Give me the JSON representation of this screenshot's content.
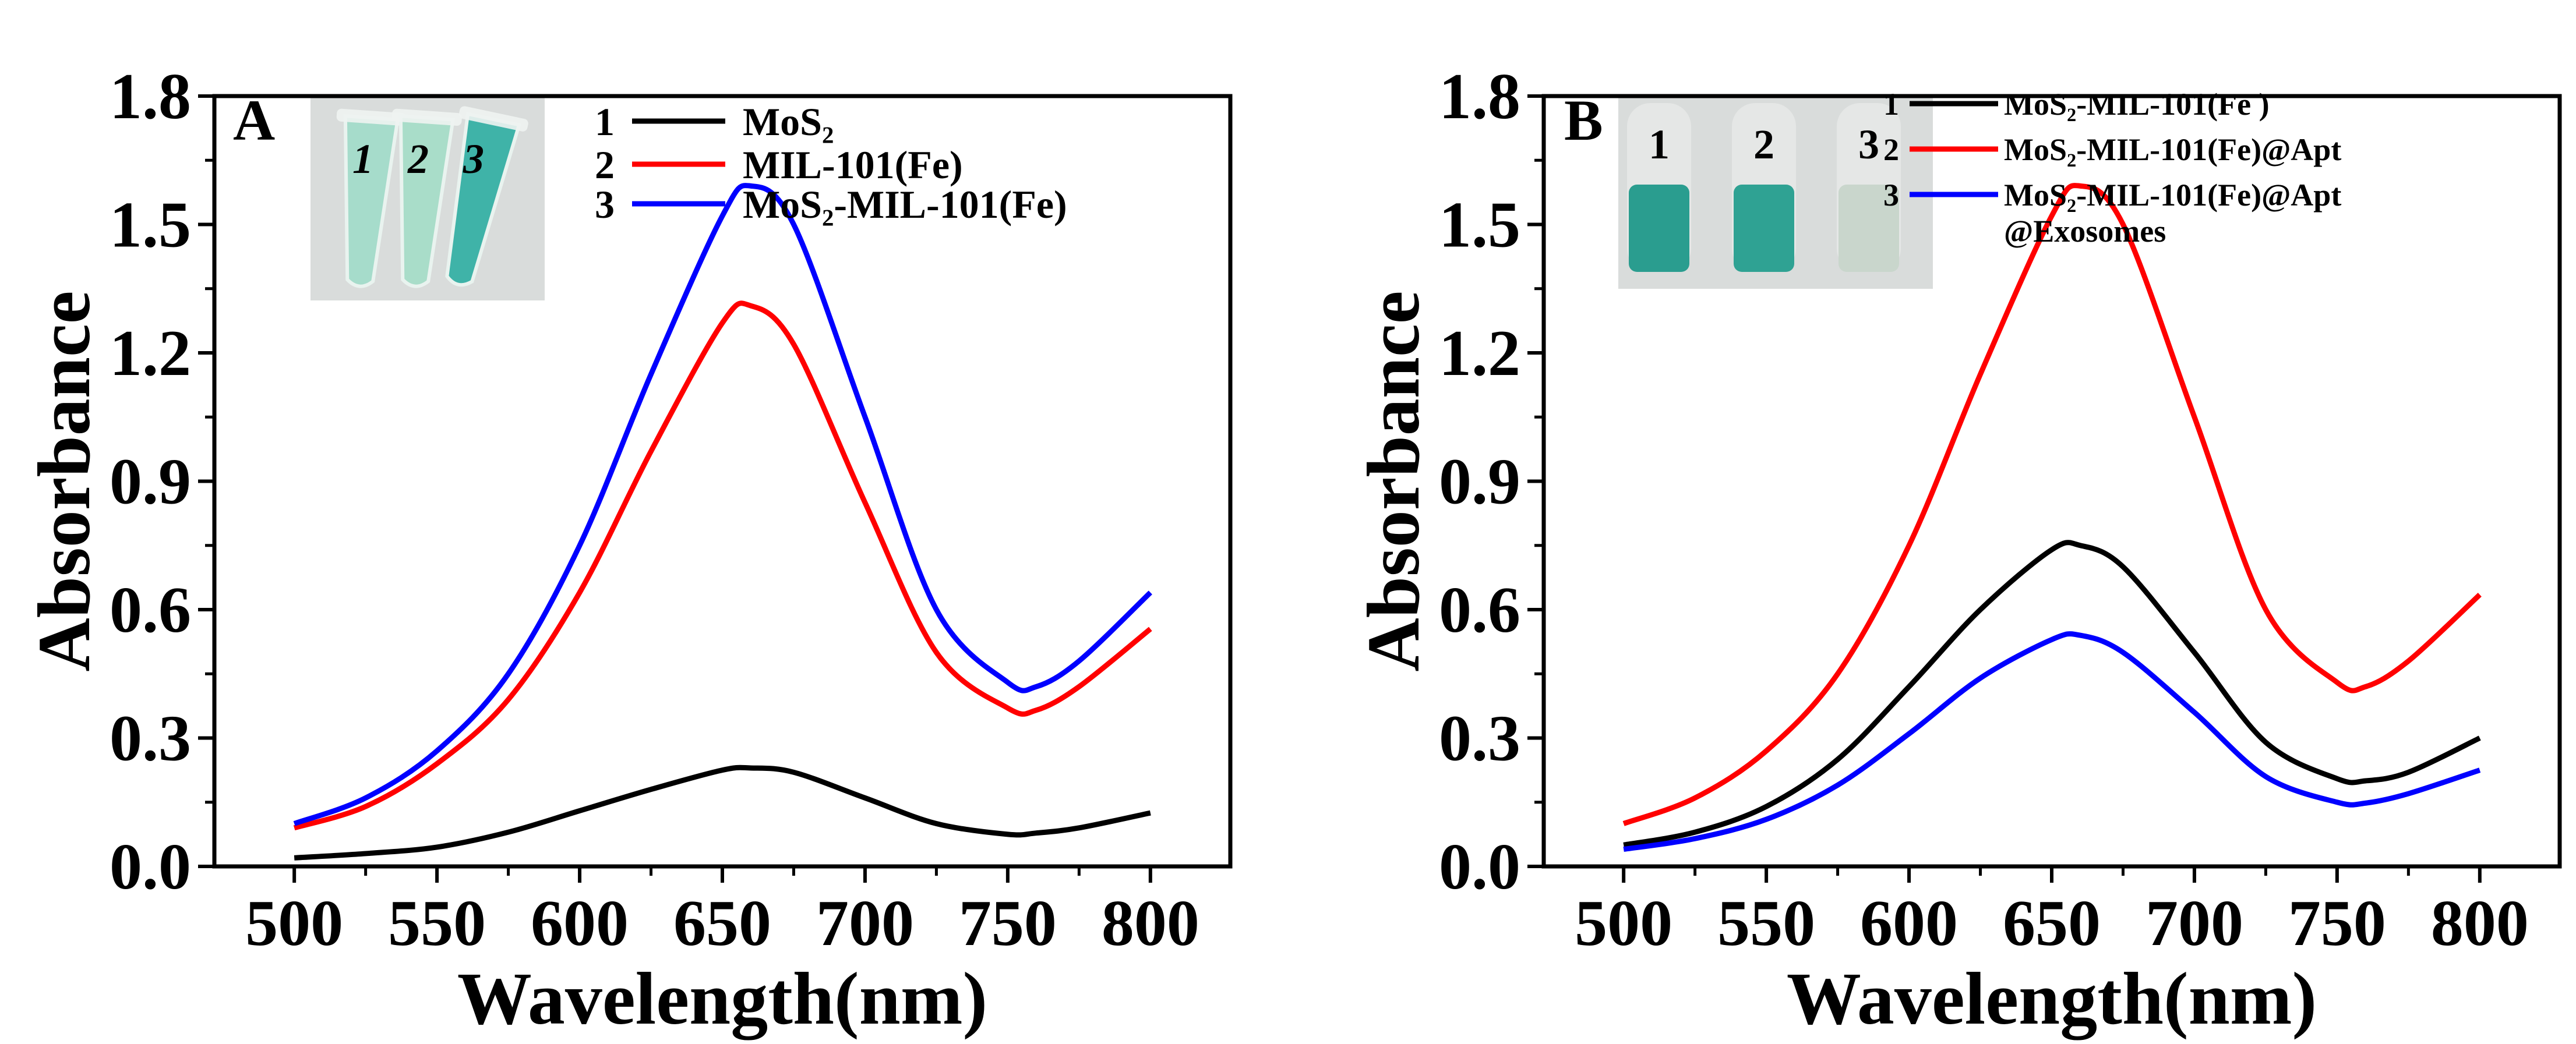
{
  "chart_data": [
    {
      "type": "line",
      "panel_label": "A",
      "xlabel": "Wavelength(nm)",
      "ylabel": "Absorbance",
      "xlim": [
        472,
        828
      ],
      "ylim": [
        0,
        1.8
      ],
      "xticks": [
        500,
        550,
        600,
        650,
        700,
        750,
        800
      ],
      "yticks": [
        0.0,
        0.3,
        0.6,
        0.9,
        1.2,
        1.5,
        1.8
      ],
      "ytick_labels": [
        "0.0",
        "0.3",
        "0.6",
        "0.9",
        "1.2",
        "1.5",
        "1.8"
      ],
      "legend_placement": "top-right",
      "inset": {
        "description_labels": [
          "1",
          "2",
          "3"
        ],
        "tube_colors": [
          "#a6dccb",
          "#a9ddc9",
          "#3fb3a8"
        ]
      },
      "x": [
        500,
        525,
        550,
        575,
        600,
        625,
        650,
        660,
        675,
        700,
        725,
        750,
        760,
        775,
        800
      ],
      "series": [
        {
          "index": "1",
          "name": "MoS₂",
          "color": "#000000",
          "values": [
            0.02,
            0.03,
            0.045,
            0.08,
            0.13,
            0.18,
            0.225,
            0.23,
            0.22,
            0.16,
            0.1,
            0.075,
            0.078,
            0.09,
            0.125
          ]
        },
        {
          "index": "2",
          "name": "MIL-101(Fe)",
          "color": "#ff0000",
          "values": [
            0.09,
            0.14,
            0.24,
            0.39,
            0.64,
            0.97,
            1.27,
            1.31,
            1.22,
            0.85,
            0.5,
            0.37,
            0.365,
            0.42,
            0.555
          ]
        },
        {
          "index": "3",
          "name": "MoS₂-MIL-101(Fe)",
          "color": "#0000ff",
          "values": [
            0.1,
            0.16,
            0.27,
            0.45,
            0.75,
            1.15,
            1.52,
            1.59,
            1.5,
            1.05,
            0.6,
            0.43,
            0.42,
            0.48,
            0.64
          ]
        }
      ]
    },
    {
      "type": "line",
      "panel_label": "B",
      "xlabel": "Wavelength(nm)",
      "ylabel": "Absorbance",
      "xlim": [
        472,
        828
      ],
      "ylim": [
        0,
        1.8
      ],
      "xticks": [
        500,
        550,
        600,
        650,
        700,
        750,
        800
      ],
      "yticks": [
        0.0,
        0.3,
        0.6,
        0.9,
        1.2,
        1.5,
        1.8
      ],
      "ytick_labels": [
        "0.0",
        "0.3",
        "0.6",
        "0.9",
        "1.2",
        "1.5",
        "1.8"
      ],
      "legend_placement": "top-right",
      "inset": {
        "description_labels": [
          "1",
          "2",
          "3"
        ],
        "tube_colors": [
          "#2a9d8f",
          "#2fa293",
          "#c9d6cc"
        ]
      },
      "x": [
        500,
        525,
        550,
        575,
        600,
        625,
        650,
        660,
        675,
        700,
        725,
        750,
        760,
        775,
        800
      ],
      "series": [
        {
          "index": "1",
          "name": "MoS₂-MIL-101(Fe )",
          "color": "#000000",
          "values": [
            0.05,
            0.08,
            0.14,
            0.25,
            0.42,
            0.6,
            0.74,
            0.75,
            0.7,
            0.5,
            0.29,
            0.205,
            0.2,
            0.22,
            0.3
          ]
        },
        {
          "index": "2",
          "name": "MoS₂-MIL-101(Fe)@Apt",
          "color": "#ff0000",
          "values": [
            0.1,
            0.16,
            0.27,
            0.45,
            0.75,
            1.15,
            1.52,
            1.59,
            1.5,
            1.05,
            0.6,
            0.43,
            0.42,
            0.48,
            0.635
          ]
        },
        {
          "index": "3",
          "name": "MoS₂-MIL-101(Fe)@Apt",
          "name_line2": "@Exosomes",
          "color": "#0000ff",
          "values": [
            0.04,
            0.065,
            0.11,
            0.19,
            0.31,
            0.44,
            0.53,
            0.54,
            0.5,
            0.36,
            0.21,
            0.15,
            0.148,
            0.17,
            0.225
          ]
        }
      ]
    }
  ]
}
